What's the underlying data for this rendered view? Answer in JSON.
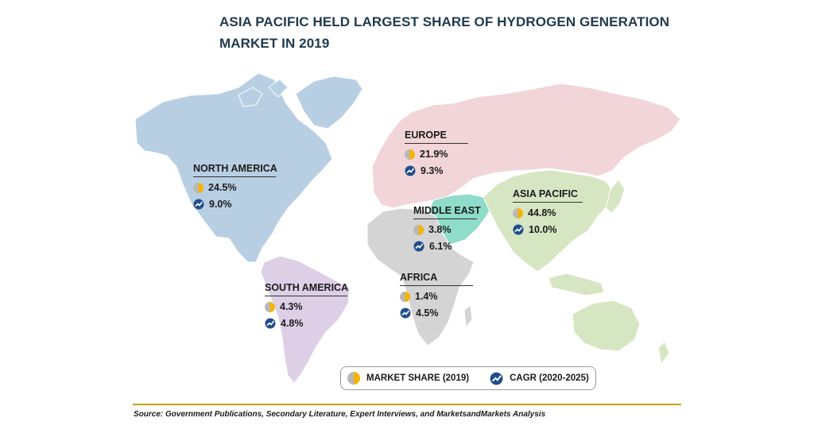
{
  "title": "ASIA PACIFIC HELD LARGEST SHARE OF HYDROGEN GENERATION MARKET IN 2019",
  "regions": {
    "north_america": {
      "name": "NORTH AMERICA",
      "market_share": "24.5%",
      "cagr": "9.0%"
    },
    "south_america": {
      "name": "SOUTH AMERICA",
      "market_share": "4.3%",
      "cagr": "4.8%"
    },
    "europe": {
      "name": "EUROPE",
      "market_share": "21.9%",
      "cagr": "9.3%"
    },
    "middle_east": {
      "name": "MIDDLE EAST",
      "market_share": "3.8%",
      "cagr": "6.1%"
    },
    "africa": {
      "name": "AFRICA",
      "market_share": "1.4%",
      "cagr": "4.5%"
    },
    "asia_pacific": {
      "name": "ASIA PACIFIC",
      "market_share": "44.8%",
      "cagr": "10.0%"
    }
  },
  "legend": {
    "market_share_label": "MARKET SHARE (2019)",
    "cagr_label": "CAGR (2020-2025)"
  },
  "source": "Source: Government Publications, Secondary Literature, Expert Interviews, and MarketsandMarkets Analysis",
  "colors": {
    "north_america": "#b8cfe3",
    "south_america": "#dccfe6",
    "europe": "#f2d5d8",
    "middle_east": "#8fdcc8",
    "africa": "#d4d4d4",
    "asia_pacific": "#d7e6c2",
    "title": "#1f3a4d",
    "accent_line": "#c9a300",
    "pie_fill": "#f4b400",
    "cagr_icon": "#1f4e8c"
  }
}
